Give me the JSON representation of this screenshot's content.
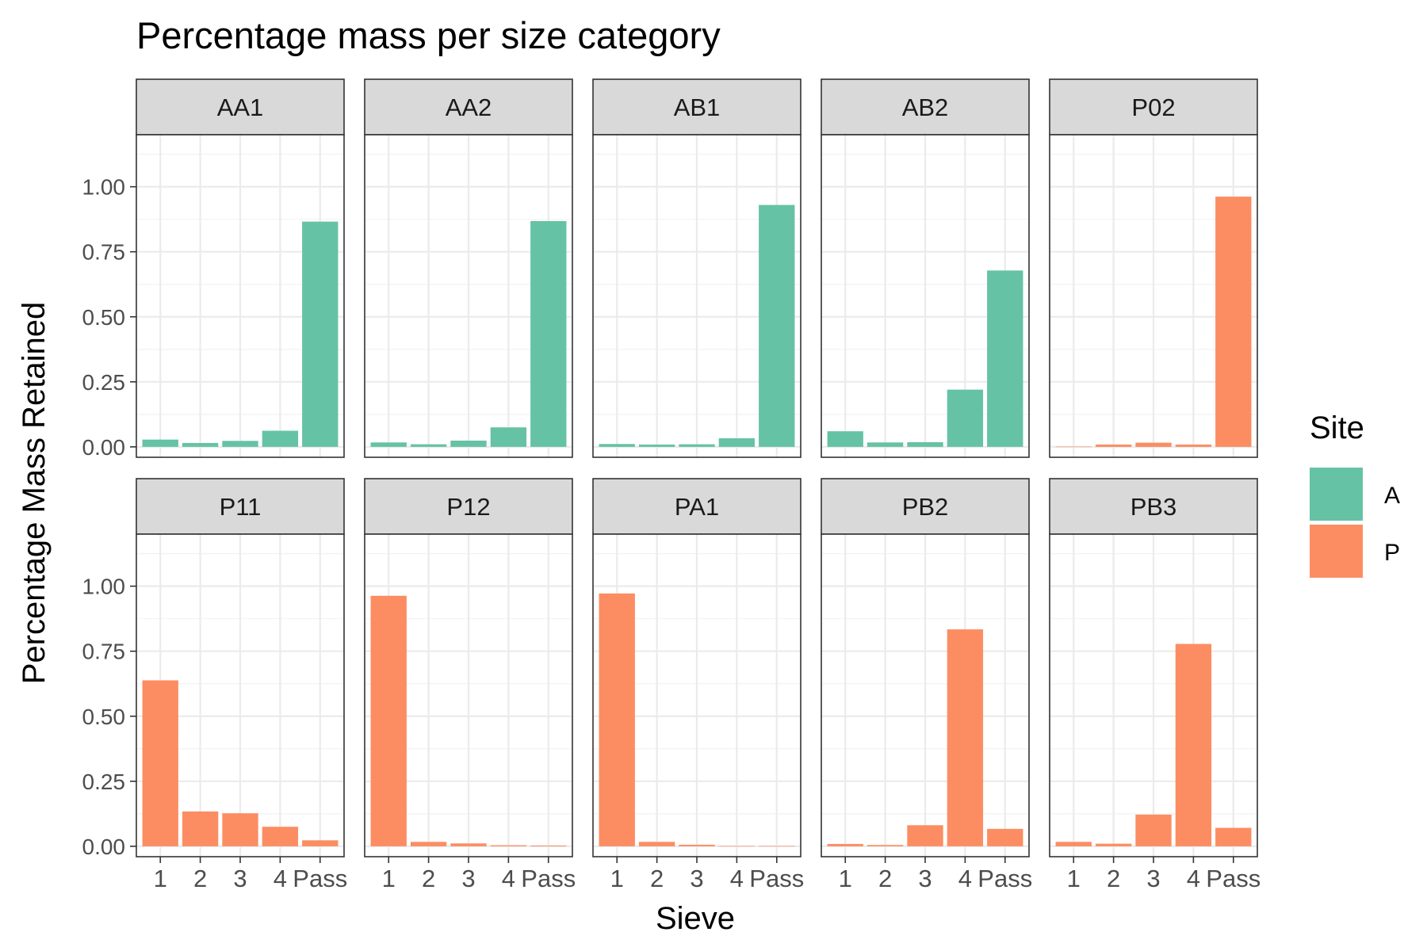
{
  "chart_data": {
    "type": "bar",
    "title": "Percentage mass per size category",
    "xlabel": "Sieve",
    "ylabel": "Percentage Mass Retained",
    "categories": [
      "1",
      "2",
      "3",
      "4",
      "Pass"
    ],
    "ylim": [
      -0.04,
      1.2
    ],
    "yticks": [
      "0.00",
      "0.25",
      "0.50",
      "0.75",
      "1.00"
    ],
    "grid": true,
    "legend": {
      "title": "Site",
      "position": "right",
      "items": [
        {
          "label": "A",
          "color": "#66C2A5"
        },
        {
          "label": "P",
          "color": "#FC8D62"
        }
      ]
    },
    "panels": [
      {
        "name": "AA1",
        "site": "A",
        "values": [
          0.028,
          0.015,
          0.023,
          0.062,
          0.866
        ]
      },
      {
        "name": "AA2",
        "site": "A",
        "values": [
          0.017,
          0.01,
          0.024,
          0.075,
          0.868
        ]
      },
      {
        "name": "AB1",
        "site": "A",
        "values": [
          0.011,
          0.009,
          0.01,
          0.033,
          0.93
        ]
      },
      {
        "name": "AB2",
        "site": "A",
        "values": [
          0.06,
          0.017,
          0.018,
          0.22,
          0.678
        ]
      },
      {
        "name": "P02",
        "site": "P",
        "values": [
          0.001,
          0.009,
          0.016,
          0.009,
          0.962
        ]
      },
      {
        "name": "P11",
        "site": "P",
        "values": [
          0.638,
          0.134,
          0.127,
          0.075,
          0.023
        ]
      },
      {
        "name": "P12",
        "site": "P",
        "values": [
          0.963,
          0.017,
          0.011,
          0.004,
          0.003
        ]
      },
      {
        "name": "PA1",
        "site": "P",
        "values": [
          0.972,
          0.017,
          0.006,
          0.001,
          0.001
        ]
      },
      {
        "name": "PB2",
        "site": "P",
        "values": [
          0.009,
          0.005,
          0.081,
          0.834,
          0.067
        ]
      },
      {
        "name": "PB3",
        "site": "P",
        "values": [
          0.017,
          0.01,
          0.122,
          0.778,
          0.071
        ]
      }
    ]
  }
}
